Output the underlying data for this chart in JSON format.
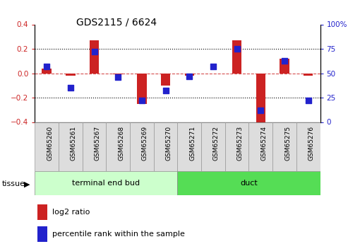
{
  "title": "GDS2115 / 6624",
  "samples": [
    "GSM65260",
    "GSM65261",
    "GSM65267",
    "GSM65268",
    "GSM65269",
    "GSM65270",
    "GSM65271",
    "GSM65272",
    "GSM65273",
    "GSM65274",
    "GSM65275",
    "GSM65276"
  ],
  "log2_ratio": [
    0.04,
    -0.02,
    0.27,
    -0.01,
    -0.25,
    -0.1,
    -0.02,
    0.0,
    0.27,
    -0.42,
    0.12,
    -0.02
  ],
  "percentile_rank": [
    57,
    35,
    72,
    46,
    22,
    32,
    47,
    57,
    75,
    12,
    63,
    22
  ],
  "bar_color": "#cc2222",
  "dot_color": "#2222cc",
  "tissue_groups": [
    {
      "label": "terminal end bud",
      "start": 0,
      "end": 5,
      "color": "#ccffcc"
    },
    {
      "label": "duct",
      "start": 6,
      "end": 11,
      "color": "#55dd55"
    }
  ],
  "ylim_left": [
    -0.4,
    0.4
  ],
  "ylim_right": [
    0,
    100
  ],
  "yticks_left": [
    -0.4,
    -0.2,
    0.0,
    0.2,
    0.4
  ],
  "yticks_right": [
    0,
    25,
    50,
    75,
    100
  ],
  "ytick_labels_right": [
    "0",
    "25",
    "50",
    "75",
    "100%"
  ],
  "background_color": "#ffffff",
  "bar_width": 0.4,
  "figsize": [
    4.93,
    3.45
  ],
  "dpi": 100
}
